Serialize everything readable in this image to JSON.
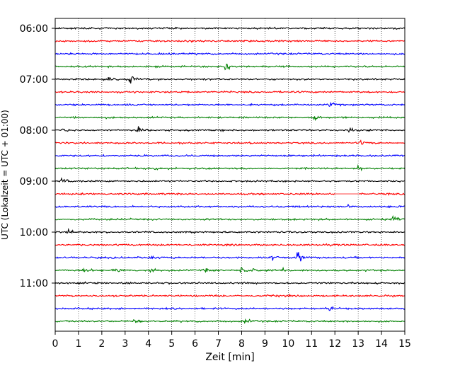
{
  "chart_data": {
    "type": "line",
    "xlabel": "Zeit  [min]",
    "ylabel": "UTC (Lokalzeit = UTC + 01:00)",
    "xlim": [
      0,
      15
    ],
    "x_ticks": [
      "0",
      "1",
      "2",
      "3",
      "4",
      "5",
      "6",
      "7",
      "8",
      "9",
      "10",
      "11",
      "12",
      "13",
      "14",
      "15"
    ],
    "y_tick_labels": [
      "06:00",
      "07:00",
      "08:00",
      "09:00",
      "10:00",
      "11:00"
    ],
    "row_start_utc": [
      "06:00",
      "06:15",
      "06:30",
      "06:45",
      "07:00",
      "07:15",
      "07:30",
      "07:45",
      "08:00",
      "08:15",
      "08:30",
      "08:45",
      "09:00",
      "09:15",
      "09:30",
      "09:45",
      "10:00",
      "10:15",
      "10:30",
      "10:45",
      "11:00",
      "11:15",
      "11:30",
      "11:45"
    ],
    "color_cycle": [
      "#000000",
      "#ff0000",
      "#0000ff",
      "#008000"
    ],
    "grid": "vertical dotted lines at each minute",
    "events": [
      {
        "row": 3,
        "minute": 7.3,
        "amplitude": 2.4
      },
      {
        "row": 4,
        "minute": 3.2,
        "amplitude": 2.6
      },
      {
        "row": 4,
        "minute": 2.3,
        "amplitude": 0.8
      },
      {
        "row": 6,
        "minute": 11.8,
        "amplitude": 1.0
      },
      {
        "row": 7,
        "minute": 11.1,
        "amplitude": 1.2
      },
      {
        "row": 8,
        "minute": 0.3,
        "amplitude": 1.3
      },
      {
        "row": 8,
        "minute": 3.5,
        "amplitude": 1.8
      },
      {
        "row": 8,
        "minute": 12.6,
        "amplitude": 1.4
      },
      {
        "row": 9,
        "minute": 13.1,
        "amplitude": 1.0
      },
      {
        "row": 11,
        "minute": 4.3,
        "amplitude": 0.8
      },
      {
        "row": 11,
        "minute": 13.0,
        "amplitude": 1.0
      },
      {
        "row": 12,
        "minute": 0.3,
        "amplitude": 1.5
      },
      {
        "row": 14,
        "minute": 12.6,
        "amplitude": 1.0
      },
      {
        "row": 15,
        "minute": 14.5,
        "amplitude": 1.6
      },
      {
        "row": 16,
        "minute": 0.6,
        "amplitude": 1.2
      },
      {
        "row": 18,
        "minute": 4.0,
        "amplitude": 1.2
      },
      {
        "row": 18,
        "minute": 9.3,
        "amplitude": 1.3
      },
      {
        "row": 18,
        "minute": 10.4,
        "amplitude": 2.8
      },
      {
        "row": 19,
        "minute": 1.2,
        "amplitude": 1.0
      },
      {
        "row": 19,
        "minute": 2.6,
        "amplitude": 1.3
      },
      {
        "row": 19,
        "minute": 4.1,
        "amplitude": 1.0
      },
      {
        "row": 19,
        "minute": 6.4,
        "amplitude": 0.8
      },
      {
        "row": 19,
        "minute": 8.0,
        "amplitude": 1.3
      },
      {
        "row": 19,
        "minute": 8.5,
        "amplitude": 0.9
      },
      {
        "row": 19,
        "minute": 9.8,
        "amplitude": 1.0
      },
      {
        "row": 21,
        "minute": 9.4,
        "amplitude": 0.7
      },
      {
        "row": 22,
        "minute": 11.8,
        "amplitude": 0.8
      },
      {
        "row": 23,
        "minute": 8.1,
        "amplitude": 1.6
      },
      {
        "row": 23,
        "minute": 3.4,
        "amplitude": 0.8
      }
    ],
    "gaps": [
      {
        "row": 13,
        "from_minute": 12.0,
        "to_minute": 13.0
      }
    ]
  }
}
